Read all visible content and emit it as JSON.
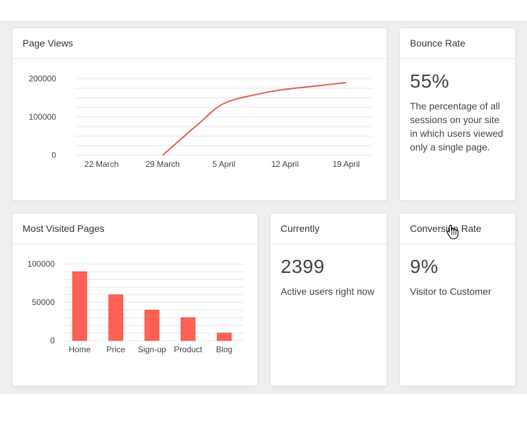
{
  "cards": {
    "page_views": {
      "title": "Page Views"
    },
    "bounce_rate": {
      "title": "Bounce Rate",
      "value": "55%",
      "description": "The percentage of all sessions on your site in which users viewed only a single page."
    },
    "most_visited": {
      "title": "Most Visited Pages"
    },
    "currently": {
      "title": "Currently",
      "value": "2399",
      "description": "Active users right now"
    },
    "conversion_rate": {
      "title": "Conversion Rate",
      "value": "9%",
      "description": "Visitor to Customer"
    }
  },
  "colors": {
    "accent": "#ff6154",
    "line": "#e8594c",
    "grid": "#e5e5e5"
  },
  "chart_data": [
    {
      "type": "line",
      "x": [
        "2020-03-29",
        "2020-04-02",
        "2020-04-05",
        "2020-04-09",
        "2020-04-12",
        "2020-04-16",
        "2020-04-19"
      ],
      "series": [
        {
          "values": [
            0,
            80000,
            135000,
            160000,
            172000,
            182000,
            190000
          ]
        }
      ],
      "xticks": [
        "22 March",
        "29 March",
        "5 April",
        "12 April",
        "19 April"
      ],
      "yticks": [
        "0",
        "100000",
        "200000"
      ],
      "ylim": [
        0,
        200000
      ],
      "xlim": [
        "2020-03-19",
        "2020-04-22"
      ],
      "grid": true
    },
    {
      "type": "bar",
      "categories": [
        "Home",
        "Price",
        "Sign-up",
        "Product",
        "Blog"
      ],
      "values": [
        90000,
        60000,
        40000,
        30000,
        10000
      ],
      "yticks": [
        "0",
        "50000",
        "100000"
      ],
      "ylim": [
        0,
        100000
      ],
      "grid": true
    }
  ]
}
